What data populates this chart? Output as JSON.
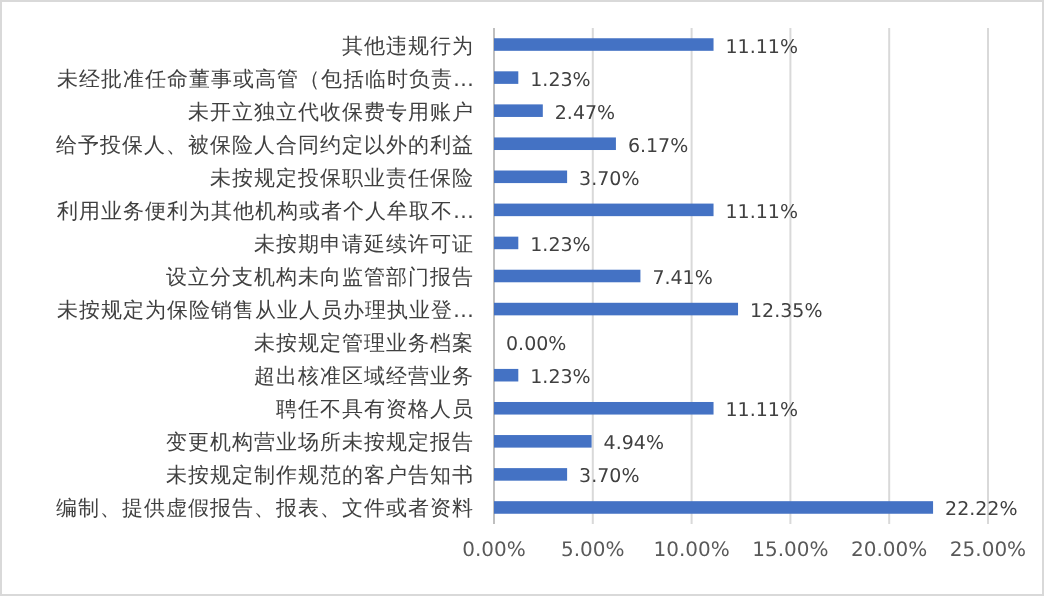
{
  "chart_data": {
    "type": "bar",
    "orientation": "horizontal",
    "categories": [
      "其他违规行为",
      "未经批准任命董事或高管（包括临时负责…",
      "未开立独立代收保费专用账户",
      "给予投保人、被保险人合同约定以外的利益",
      "未按规定投保职业责任保险",
      "利用业务便利为其他机构或者个人牟取不…",
      "未按期申请延续许可证",
      "设立分支机构未向监管部门报告",
      "未按规定为保险销售从业人员办理执业登…",
      "未按规定管理业务档案",
      "超出核准区域经营业务",
      "聘任不具有资格人员",
      "变更机构营业场所未按规定报告",
      "未按规定制作规范的客户告知书",
      "编制、提供虚假报告、报表、文件或者资料"
    ],
    "values": [
      11.11,
      1.23,
      2.47,
      6.17,
      3.7,
      11.11,
      1.23,
      7.41,
      12.35,
      0.0,
      1.23,
      11.11,
      4.94,
      3.7,
      22.22
    ],
    "value_labels": [
      "11.11%",
      "1.23%",
      "2.47%",
      "6.17%",
      "3.70%",
      "11.11%",
      "1.23%",
      "7.41%",
      "12.35%",
      "0.00%",
      "1.23%",
      "11.11%",
      "4.94%",
      "3.70%",
      "22.22%"
    ],
    "color": "#4472c4",
    "xlim": [
      0,
      25
    ],
    "xticks": [
      {
        "value": 0,
        "label": "0.00%"
      },
      {
        "value": 5,
        "label": "5.00%"
      },
      {
        "value": 10,
        "label": "10.00%"
      },
      {
        "value": 15,
        "label": "15.00%"
      },
      {
        "value": 20,
        "label": "20.00%"
      },
      {
        "value": 25,
        "label": "25.00%"
      }
    ],
    "grid": "x"
  }
}
